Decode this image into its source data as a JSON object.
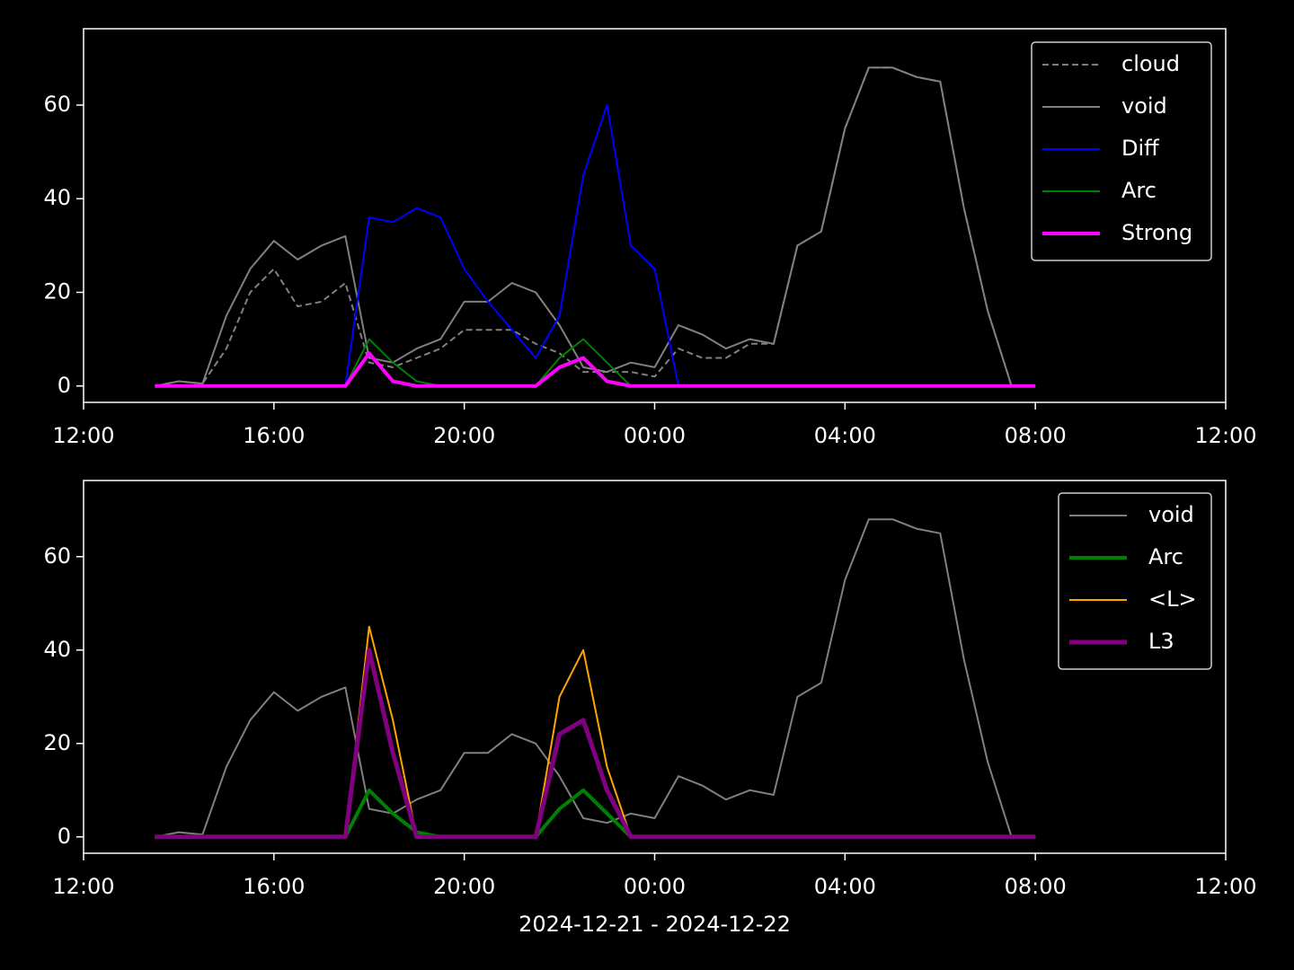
{
  "chart_data": [
    {
      "type": "line",
      "x": [
        "13:30",
        "14:00",
        "14:30",
        "15:00",
        "15:30",
        "16:00",
        "16:30",
        "17:00",
        "17:30",
        "18:00",
        "18:30",
        "19:00",
        "19:30",
        "20:00",
        "20:30",
        "21:00",
        "21:30",
        "22:00",
        "22:30",
        "23:00",
        "23:30",
        "00:00",
        "00:30",
        "01:00",
        "01:30",
        "02:00",
        "02:30",
        "03:00",
        "03:30",
        "04:00",
        "04:30",
        "05:00",
        "05:30",
        "06:00",
        "06:30",
        "07:00",
        "07:30",
        "08:00"
      ],
      "series": [
        {
          "name": "cloud",
          "color": "gray",
          "dash": true,
          "width": 1,
          "values": [
            0,
            1,
            0.5,
            8,
            20,
            25,
            17,
            18,
            22,
            5,
            4,
            6,
            8,
            12,
            12,
            12,
            9,
            7,
            3,
            3,
            3,
            2,
            8,
            6,
            6,
            9,
            9,
            30,
            33,
            55,
            68,
            68,
            66,
            65,
            38,
            16,
            0,
            0
          ]
        },
        {
          "name": "void",
          "color": "gray",
          "dash": false,
          "width": 1,
          "values": [
            0,
            1,
            0.5,
            15,
            25,
            31,
            27,
            30,
            32,
            6,
            5,
            8,
            10,
            18,
            18,
            22,
            20,
            13,
            4,
            3,
            5,
            4,
            13,
            11,
            8,
            10,
            9,
            30,
            33,
            55,
            68,
            68,
            66,
            65,
            38,
            16,
            0,
            0
          ]
        },
        {
          "name": "Diff",
          "color": "blue",
          "dash": false,
          "width": 1,
          "values": [
            0,
            0,
            0,
            0,
            0,
            0,
            0,
            0,
            0,
            36,
            35,
            38,
            36,
            25,
            18,
            12,
            6,
            15,
            45,
            60,
            30,
            25,
            0,
            0,
            0,
            0,
            0,
            0,
            0,
            0,
            0,
            0,
            0,
            0,
            0,
            0,
            0,
            0
          ]
        },
        {
          "name": "Arc",
          "color": "green",
          "dash": false,
          "width": 1,
          "values": [
            0,
            0,
            0,
            0,
            0,
            0,
            0,
            0,
            0,
            10,
            5,
            1,
            0,
            0,
            0,
            0,
            0,
            6,
            10,
            5,
            0,
            0,
            0,
            0,
            0,
            0,
            0,
            0,
            0,
            0,
            0,
            0,
            0,
            0,
            0,
            0,
            0,
            0
          ]
        },
        {
          "name": "Strong",
          "color": "magenta",
          "dash": false,
          "width": 2,
          "values": [
            0,
            0,
            0,
            0,
            0,
            0,
            0,
            0,
            0,
            7,
            1,
            0,
            0,
            0,
            0,
            0,
            0,
            4,
            6,
            1,
            0,
            0,
            0,
            0,
            0,
            0,
            0,
            0,
            0,
            0,
            0,
            0,
            0,
            0,
            0,
            0,
            0,
            0
          ]
        }
      ],
      "xlim": [
        "12:00",
        "12:00"
      ],
      "xticks": [
        "12:00",
        "16:00",
        "20:00",
        "00:00",
        "04:00",
        "08:00",
        "12:00"
      ],
      "ylim": [
        -3.5,
        76.3
      ],
      "yticks": [
        0,
        20,
        40,
        60
      ],
      "legend": "upper right"
    },
    {
      "type": "line",
      "x": [
        "13:30",
        "14:00",
        "14:30",
        "15:00",
        "15:30",
        "16:00",
        "16:30",
        "17:00",
        "17:30",
        "18:00",
        "18:30",
        "19:00",
        "19:30",
        "20:00",
        "20:30",
        "21:00",
        "21:30",
        "22:00",
        "22:30",
        "23:00",
        "23:30",
        "00:00",
        "00:30",
        "01:00",
        "01:30",
        "02:00",
        "02:30",
        "03:00",
        "03:30",
        "04:00",
        "04:30",
        "05:00",
        "05:30",
        "06:00",
        "06:30",
        "07:00",
        "07:30",
        "08:00"
      ],
      "series": [
        {
          "name": "void",
          "color": "gray",
          "dash": false,
          "width": 1,
          "values": [
            0,
            1,
            0.5,
            15,
            25,
            31,
            27,
            30,
            32,
            6,
            5,
            8,
            10,
            18,
            18,
            22,
            20,
            13,
            4,
            3,
            5,
            4,
            13,
            11,
            8,
            10,
            9,
            30,
            33,
            55,
            68,
            68,
            66,
            65,
            38,
            16,
            0,
            0
          ]
        },
        {
          "name": "Arc",
          "color": "green",
          "dash": false,
          "width": 2,
          "values": [
            0,
            0,
            0,
            0,
            0,
            0,
            0,
            0,
            0,
            10,
            5,
            1,
            0,
            0,
            0,
            0,
            0,
            6,
            10,
            5,
            0,
            0,
            0,
            0,
            0,
            0,
            0,
            0,
            0,
            0,
            0,
            0,
            0,
            0,
            0,
            0,
            0,
            0
          ]
        },
        {
          "name": "<L>",
          "color": "orange",
          "dash": false,
          "width": 1,
          "values": [
            0,
            0,
            0,
            0,
            0,
            0,
            0,
            0,
            0,
            45,
            25,
            0,
            0,
            0,
            0,
            0,
            0,
            30,
            40,
            15,
            0,
            0,
            0,
            0,
            0,
            0,
            0,
            0,
            0,
            0,
            0,
            0,
            0,
            0,
            0,
            0,
            0,
            0
          ]
        },
        {
          "name": "L3",
          "color": "purple",
          "dash": false,
          "width": 2.5,
          "values": [
            0,
            0,
            0,
            0,
            0,
            0,
            0,
            0,
            0,
            40,
            18,
            0,
            0,
            0,
            0,
            0,
            0,
            22,
            25,
            10,
            0,
            0,
            0,
            0,
            0,
            0,
            0,
            0,
            0,
            0,
            0,
            0,
            0,
            0,
            0,
            0,
            0,
            0
          ]
        }
      ],
      "xlim": [
        "12:00",
        "12:00"
      ],
      "xticks": [
        "12:00",
        "16:00",
        "20:00",
        "00:00",
        "04:00",
        "08:00",
        "12:00"
      ],
      "ylim": [
        -3.5,
        76.3
      ],
      "yticks": [
        0,
        20,
        40,
        60
      ],
      "legend": "upper right",
      "xlabel": "2024-12-21 - 2024-12-22"
    }
  ]
}
